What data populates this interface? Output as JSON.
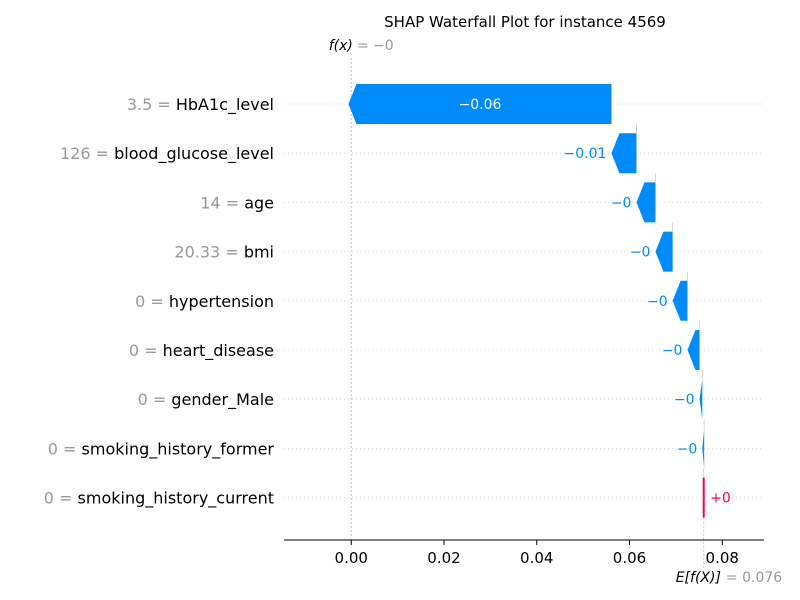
{
  "chart_data": {
    "type": "waterfall",
    "title": "SHAP Waterfall Plot for instance 4569",
    "base_value": 0.076,
    "base_label_math": "E[f(X)]",
    "base_label_value": "= 0.076",
    "final_value": 0,
    "final_label_math": "f(x)",
    "final_label_value": "= −0",
    "xlim": [
      -0.0145,
      0.089
    ],
    "xticks": [
      0.0,
      0.02,
      0.04,
      0.06,
      0.08
    ],
    "xtick_labels": [
      "0.00",
      "0.02",
      "0.04",
      "0.06",
      "0.08"
    ],
    "grid": "horizontal dotted rows",
    "features": [
      {
        "value": "3.5",
        "name": "HbA1c_level",
        "shap": -0.0567,
        "label": "−0.06"
      },
      {
        "value": "126",
        "name": "blood_glucose_level",
        "shap": -0.0054,
        "label": "−0.01"
      },
      {
        "value": "14",
        "name": "age",
        "shap": -0.0041,
        "label": "−0"
      },
      {
        "value": "20.33",
        "name": "bmi",
        "shap": -0.0037,
        "label": "−0"
      },
      {
        "value": "0",
        "name": "hypertension",
        "shap": -0.0032,
        "label": "−0"
      },
      {
        "value": "0",
        "name": "heart_disease",
        "shap": -0.0026,
        "label": "−0"
      },
      {
        "value": "0",
        "name": "gender_Male",
        "shap": -0.0006,
        "label": "−0"
      },
      {
        "value": "0",
        "name": "smoking_history_former",
        "shap": -0.0004,
        "label": "−0"
      },
      {
        "value": "0",
        "name": "smoking_history_current",
        "shap": 0.0001,
        "label": "+0"
      }
    ],
    "colors": {
      "negative": "#008bfb",
      "positive": "#ff0051",
      "axis": "#000000",
      "muted": "#999999",
      "grid": "#cccccc"
    }
  }
}
